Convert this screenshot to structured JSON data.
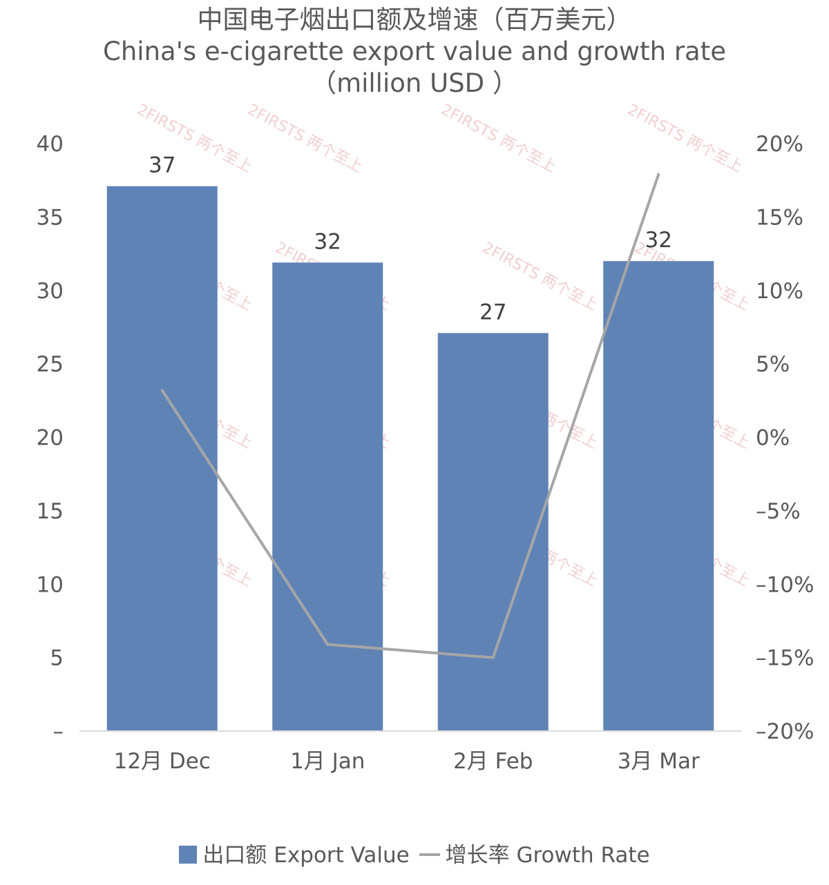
{
  "title": {
    "line1": "中国电子烟出口额及增速（百万美元）",
    "line2": "China's e-cigarette export value and growth rate",
    "line3": "（million USD ）"
  },
  "legend": {
    "bar_label": "出口额 Export Value",
    "line_label": "增长率 Growth Rate"
  },
  "watermark": "2FIRSTS 两个至上",
  "colors": {
    "bar": "#6083b6",
    "line": "#a6a6a6",
    "watermark": "#e8a9a9"
  },
  "chart_data": {
    "type": "bar",
    "categories": [
      "12月 Dec",
      "1月 Jan",
      "2月 Feb",
      "3月 Mar"
    ],
    "series": [
      {
        "name": "出口额 Export Value",
        "type": "bar",
        "axis": "left",
        "values": [
          37.1,
          31.9,
          27.1,
          32.0
        ],
        "data_labels": [
          "37",
          "32",
          "27",
          "32"
        ]
      },
      {
        "name": "增长率 Growth Rate",
        "type": "line",
        "axis": "right",
        "values": [
          3.2,
          -14.1,
          -15.0,
          17.9
        ]
      }
    ],
    "y_left": {
      "ylim": [
        0,
        40
      ],
      "ticks": [
        0,
        5,
        10,
        15,
        20,
        25,
        30,
        35,
        40
      ],
      "tick_labels": [
        "–",
        "5",
        "10",
        "15",
        "20",
        "25",
        "30",
        "35",
        "40"
      ]
    },
    "y_right": {
      "ylim": [
        -20,
        20
      ],
      "ticks": [
        -20,
        -15,
        -10,
        -5,
        0,
        5,
        10,
        15,
        20
      ],
      "tick_labels": [
        "–20%",
        "–15%",
        "–10%",
        "–5%",
        "0%",
        "5%",
        "10%",
        "15%",
        "20%"
      ]
    },
    "grid": false,
    "legend_position": "bottom"
  }
}
